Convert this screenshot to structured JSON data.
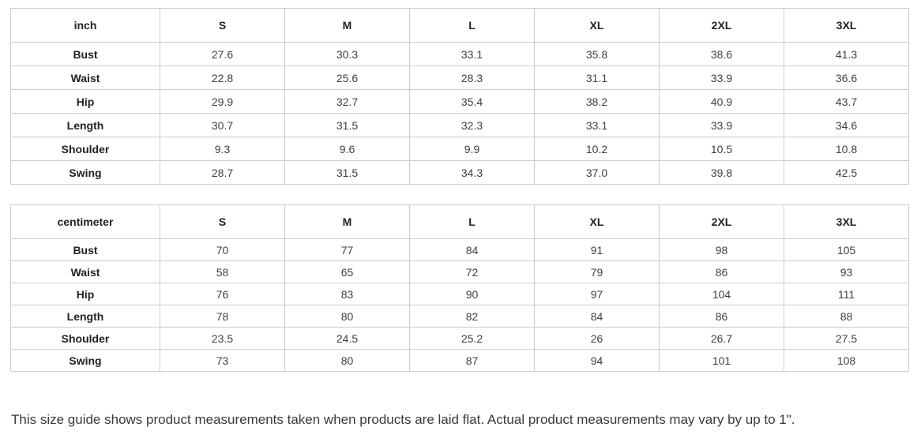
{
  "chart_data": [
    {
      "type": "table",
      "unit_label": "inch",
      "size_headers": [
        "S",
        "M",
        "L",
        "XL",
        "2XL",
        "3XL"
      ],
      "rows": [
        {
          "label": "Bust",
          "values": [
            "27.6",
            "30.3",
            "33.1",
            "35.8",
            "38.6",
            "41.3"
          ]
        },
        {
          "label": "Waist",
          "values": [
            "22.8",
            "25.6",
            "28.3",
            "31.1",
            "33.9",
            "36.6"
          ]
        },
        {
          "label": "Hip",
          "values": [
            "29.9",
            "32.7",
            "35.4",
            "38.2",
            "40.9",
            "43.7"
          ]
        },
        {
          "label": "Length",
          "values": [
            "30.7",
            "31.5",
            "32.3",
            "33.1",
            "33.9",
            "34.6"
          ]
        },
        {
          "label": "Shoulder",
          "values": [
            "9.3",
            "9.6",
            "9.9",
            "10.2",
            "10.5",
            "10.8"
          ]
        },
        {
          "label": "Swing",
          "values": [
            "28.7",
            "31.5",
            "34.3",
            "37.0",
            "39.8",
            "42.5"
          ]
        }
      ]
    },
    {
      "type": "table",
      "unit_label": "centimeter",
      "size_headers": [
        "S",
        "M",
        "L",
        "XL",
        "2XL",
        "3XL"
      ],
      "rows": [
        {
          "label": "Bust",
          "values": [
            "70",
            "77",
            "84",
            "91",
            "98",
            "105"
          ]
        },
        {
          "label": "Waist",
          "values": [
            "58",
            "65",
            "72",
            "79",
            "86",
            "93"
          ]
        },
        {
          "label": "Hip",
          "values": [
            "76",
            "83",
            "90",
            "97",
            "104",
            "111"
          ]
        },
        {
          "label": "Length",
          "values": [
            "78",
            "80",
            "82",
            "84",
            "86",
            "88"
          ]
        },
        {
          "label": "Shoulder",
          "values": [
            "23.5",
            "24.5",
            "25.2",
            "26",
            "26.7",
            "27.5"
          ]
        },
        {
          "label": "Swing",
          "values": [
            "73",
            "80",
            "87",
            "94",
            "101",
            "108"
          ]
        }
      ]
    }
  ],
  "note": "This size guide shows product measurements taken when products are laid flat. Actual product measurements may vary by up to 1\".",
  "colors": {
    "table_border": "#cccccc",
    "header_text": "#222222",
    "value_text": "#404040",
    "note_text": "#3a3a3a",
    "background": "#ffffff"
  }
}
